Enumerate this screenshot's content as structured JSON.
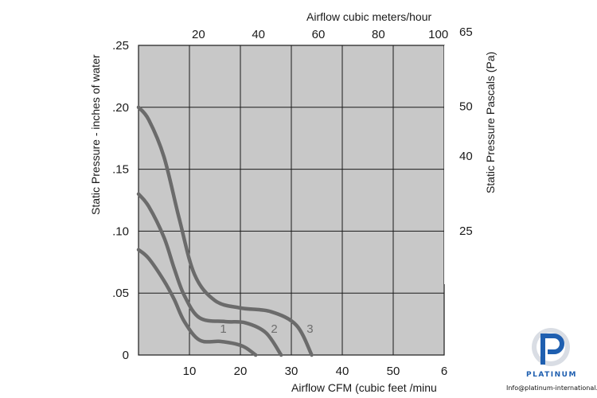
{
  "chart_data": {
    "type": "line",
    "title": "",
    "xlabel": "Airflow  CFM (cubic feet /minu",
    "ylabel": "Static Pressure - inches of water",
    "x2label": "Airflow cubic meters/hour",
    "y2label": "Static Pressure Pascals (Pa)",
    "xlim": [
      0,
      60
    ],
    "ylim": [
      0,
      0.25
    ],
    "x_ticks": [
      "10",
      "20",
      "30",
      "40",
      "50",
      "6"
    ],
    "y_ticks": [
      "0",
      ".05",
      ".10",
      ".15",
      ".20",
      ".25"
    ],
    "x2_ticks": [
      "20",
      "40",
      "60",
      "80",
      "100"
    ],
    "y2_ticks": [
      "25",
      "40",
      "50",
      "65"
    ],
    "grid": true,
    "series": [
      {
        "name": "1",
        "x": [
          0,
          2,
          5,
          7,
          9,
          12,
          16,
          19,
          21,
          23
        ],
        "y": [
          0.085,
          0.078,
          0.06,
          0.045,
          0.027,
          0.012,
          0.011,
          0.009,
          0.006,
          0
        ]
      },
      {
        "name": "2",
        "x": [
          0,
          2,
          5,
          7,
          9,
          12,
          17,
          21,
          25,
          28
        ],
        "y": [
          0.13,
          0.12,
          0.095,
          0.07,
          0.048,
          0.03,
          0.027,
          0.026,
          0.018,
          0
        ]
      },
      {
        "name": "3",
        "x": [
          0,
          2,
          5,
          8,
          11,
          15,
          20,
          26,
          31,
          34
        ],
        "y": [
          0.2,
          0.19,
          0.16,
          0.11,
          0.065,
          0.044,
          0.038,
          0.035,
          0.024,
          0
        ]
      }
    ]
  },
  "watermark": {
    "brand": "PLATINUM",
    "contact": "Info@platinum-international.store"
  }
}
